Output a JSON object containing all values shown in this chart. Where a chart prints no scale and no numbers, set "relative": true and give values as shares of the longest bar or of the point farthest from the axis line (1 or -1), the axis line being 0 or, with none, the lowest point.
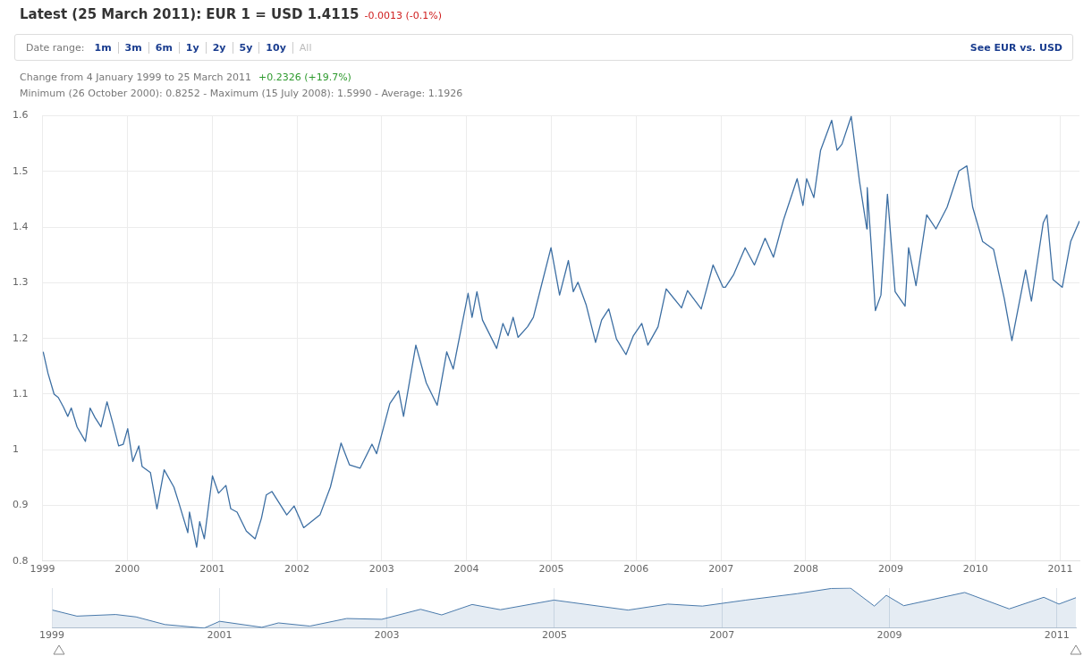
{
  "chart_data": [
    {
      "type": "line",
      "title": "Latest (25 March 2011): EUR 1 = USD 1.4115",
      "annotations": [
        "-0.0013 (-0.1%)",
        "Date range:",
        "1m",
        "3m",
        "6m",
        "1y",
        "2y",
        "5y",
        "10y",
        "All",
        "See EUR vs. USD",
        "Change from 4 January 1999 to 25 March 2011",
        "+0.2326 (+19.7%)",
        "Minimum (26 October 2000): 0.8252 - Maximum (15 July 2008): 1.5990 - Average: 1.1926"
      ],
      "x": [
        "1999-01-04",
        "1999-01-25",
        "1999-02-20",
        "1999-03-10",
        "1999-04-01",
        "1999-04-20",
        "1999-05-05",
        "1999-05-30",
        "1999-07-05",
        "1999-07-25",
        "1999-08-15",
        "1999-09-10",
        "1999-10-06",
        "1999-11-01",
        "1999-11-25",
        "1999-12-15",
        "2000-01-03",
        "2000-01-25",
        "2000-02-20",
        "2000-03-05",
        "2000-04-10",
        "2000-05-08",
        "2000-06-08",
        "2000-07-20",
        "2000-08-10",
        "2000-09-18",
        "2000-09-25",
        "2000-10-26",
        "2000-11-08",
        "2000-11-28",
        "2001-01-02",
        "2001-01-28",
        "2001-03-01",
        "2001-03-22",
        "2001-04-18",
        "2001-05-28",
        "2001-07-05",
        "2001-08-01",
        "2001-08-22",
        "2001-09-15",
        "2001-11-18",
        "2001-12-20",
        "2002-01-30",
        "2002-04-10",
        "2002-05-25",
        "2002-07-10",
        "2002-08-15",
        "2002-09-30",
        "2002-11-20",
        "2002-12-10",
        "2003-02-05",
        "2003-03-15",
        "2003-04-05",
        "2003-05-28",
        "2003-07-12",
        "2003-08-28",
        "2003-10-08",
        "2003-11-05",
        "2004-01-08",
        "2004-01-25",
        "2004-02-15",
        "2004-03-10",
        "2004-05-10",
        "2004-06-06",
        "2004-06-28",
        "2004-07-20",
        "2004-08-10",
        "2004-09-20",
        "2004-10-15",
        "2004-11-15",
        "2004-12-30",
        "2005-02-05",
        "2005-03-15",
        "2005-04-05",
        "2005-04-25",
        "2005-05-30",
        "2005-07-10",
        "2005-08-05",
        "2005-09-05",
        "2005-10-08",
        "2005-11-18",
        "2005-12-20",
        "2006-01-25",
        "2006-02-20",
        "2006-04-05",
        "2006-05-10",
        "2006-07-15",
        "2006-08-10",
        "2006-10-08",
        "2006-11-28",
        "2007-01-10",
        "2007-01-20",
        "2007-02-25",
        "2007-04-15",
        "2007-05-25",
        "2007-07-10",
        "2007-08-15",
        "2007-09-28",
        "2007-11-25",
        "2007-12-20",
        "2008-01-05",
        "2008-02-05",
        "2008-03-05",
        "2008-04-22",
        "2008-05-15",
        "2008-06-05",
        "2008-07-15",
        "2008-08-20",
        "2008-09-20",
        "2008-09-22",
        "2008-10-08",
        "2008-10-27",
        "2008-11-20",
        "2008-12-18",
        "2009-01-20",
        "2009-03-04",
        "2009-03-19",
        "2009-04-20",
        "2009-06-05",
        "2009-07-15",
        "2009-09-01",
        "2009-10-22",
        "2009-11-25",
        "2009-12-20",
        "2010-02-01",
        "2010-03-20",
        "2010-05-05",
        "2010-06-07",
        "2010-08-05",
        "2010-08-30",
        "2010-10-20",
        "2010-11-05",
        "2010-12-01",
        "2011-01-10",
        "2011-02-15",
        "2011-03-25"
      ],
      "series": [
        {
          "color": "#3d6fa3",
          "values": [
            1.176,
            1.137,
            1.1,
            1.094,
            1.077,
            1.06,
            1.075,
            1.041,
            1.015,
            1.075,
            1.058,
            1.041,
            1.086,
            1.046,
            1.007,
            1.01,
            1.038,
            0.979,
            1.007,
            0.97,
            0.959,
            0.894,
            0.964,
            0.933,
            0.905,
            0.851,
            0.888,
            0.825,
            0.871,
            0.84,
            0.953,
            0.922,
            0.936,
            0.894,
            0.888,
            0.854,
            0.84,
            0.877,
            0.919,
            0.925,
            0.883,
            0.899,
            0.86,
            0.883,
            0.933,
            1.012,
            0.973,
            0.967,
            1.01,
            0.993,
            1.083,
            1.106,
            1.06,
            1.188,
            1.12,
            1.08,
            1.176,
            1.145,
            1.281,
            1.238,
            1.284,
            1.233,
            1.182,
            1.227,
            1.205,
            1.238,
            1.202,
            1.221,
            1.238,
            1.289,
            1.363,
            1.278,
            1.34,
            1.284,
            1.301,
            1.261,
            1.193,
            1.233,
            1.253,
            1.199,
            1.171,
            1.205,
            1.227,
            1.188,
            1.221,
            1.289,
            1.255,
            1.286,
            1.253,
            1.332,
            1.292,
            1.292,
            1.315,
            1.363,
            1.332,
            1.38,
            1.346,
            1.414,
            1.487,
            1.439,
            1.487,
            1.453,
            1.538,
            1.592,
            1.538,
            1.549,
            1.599,
            1.481,
            1.397,
            1.471,
            1.374,
            1.25,
            1.278,
            1.459,
            1.284,
            1.258,
            1.363,
            1.295,
            1.422,
            1.397,
            1.436,
            1.501,
            1.51,
            1.436,
            1.374,
            1.36,
            1.272,
            1.196,
            1.323,
            1.267,
            1.408,
            1.422,
            1.306,
            1.292,
            1.374,
            1.411
          ]
        }
      ],
      "xlim": [
        "1999-01-01",
        "2011-03-25"
      ],
      "xticks": [
        "1999",
        "2000",
        "2001",
        "2002",
        "2003",
        "2004",
        "2005",
        "2006",
        "2007",
        "2008",
        "2009",
        "2010",
        "2011"
      ],
      "ylim": [
        0.8,
        1.6
      ],
      "yticks": [
        0.8,
        0.9,
        1,
        1.1,
        1.2,
        1.3,
        1.4,
        1.5,
        1.6
      ],
      "grid": true,
      "legend": false
    },
    {
      "type": "area",
      "relative": true,
      "x": [
        "1999-01-04",
        "1999-04-20",
        "1999-10-06",
        "2000-01-03",
        "2000-05-08",
        "2000-10-26",
        "2001-01-02",
        "2001-07-05",
        "2001-09-15",
        "2002-01-30",
        "2002-07-10",
        "2002-12-10",
        "2003-05-28",
        "2003-08-28",
        "2004-01-08",
        "2004-05-10",
        "2004-12-30",
        "2005-11-18",
        "2006-05-10",
        "2006-10-08",
        "2007-04-15",
        "2007-11-25",
        "2008-04-22",
        "2008-07-15",
        "2008-10-27",
        "2008-12-18",
        "2009-03-04",
        "2009-11-25",
        "2010-06-07",
        "2010-11-05",
        "2011-01-10",
        "2011-03-25"
      ],
      "series": [
        {
          "color": "#4a7aab",
          "values": [
            0.45,
            0.3,
            0.34,
            0.28,
            0.09,
            0,
            0.17,
            0.02,
            0.13,
            0.05,
            0.24,
            0.22,
            0.47,
            0.33,
            0.59,
            0.46,
            0.7,
            0.45,
            0.6,
            0.55,
            0.7,
            0.86,
            0.99,
            1,
            0.55,
            0.82,
            0.56,
            0.89,
            0.48,
            0.77,
            0.6,
            0.76
          ]
        }
      ],
      "xlim": [
        "1999-01-01",
        "2011-03-25"
      ],
      "xticks": [
        "1999",
        "2001",
        "2003",
        "2005",
        "2007",
        "2009",
        "2011"
      ],
      "grid": "x",
      "legend": false
    }
  ]
}
